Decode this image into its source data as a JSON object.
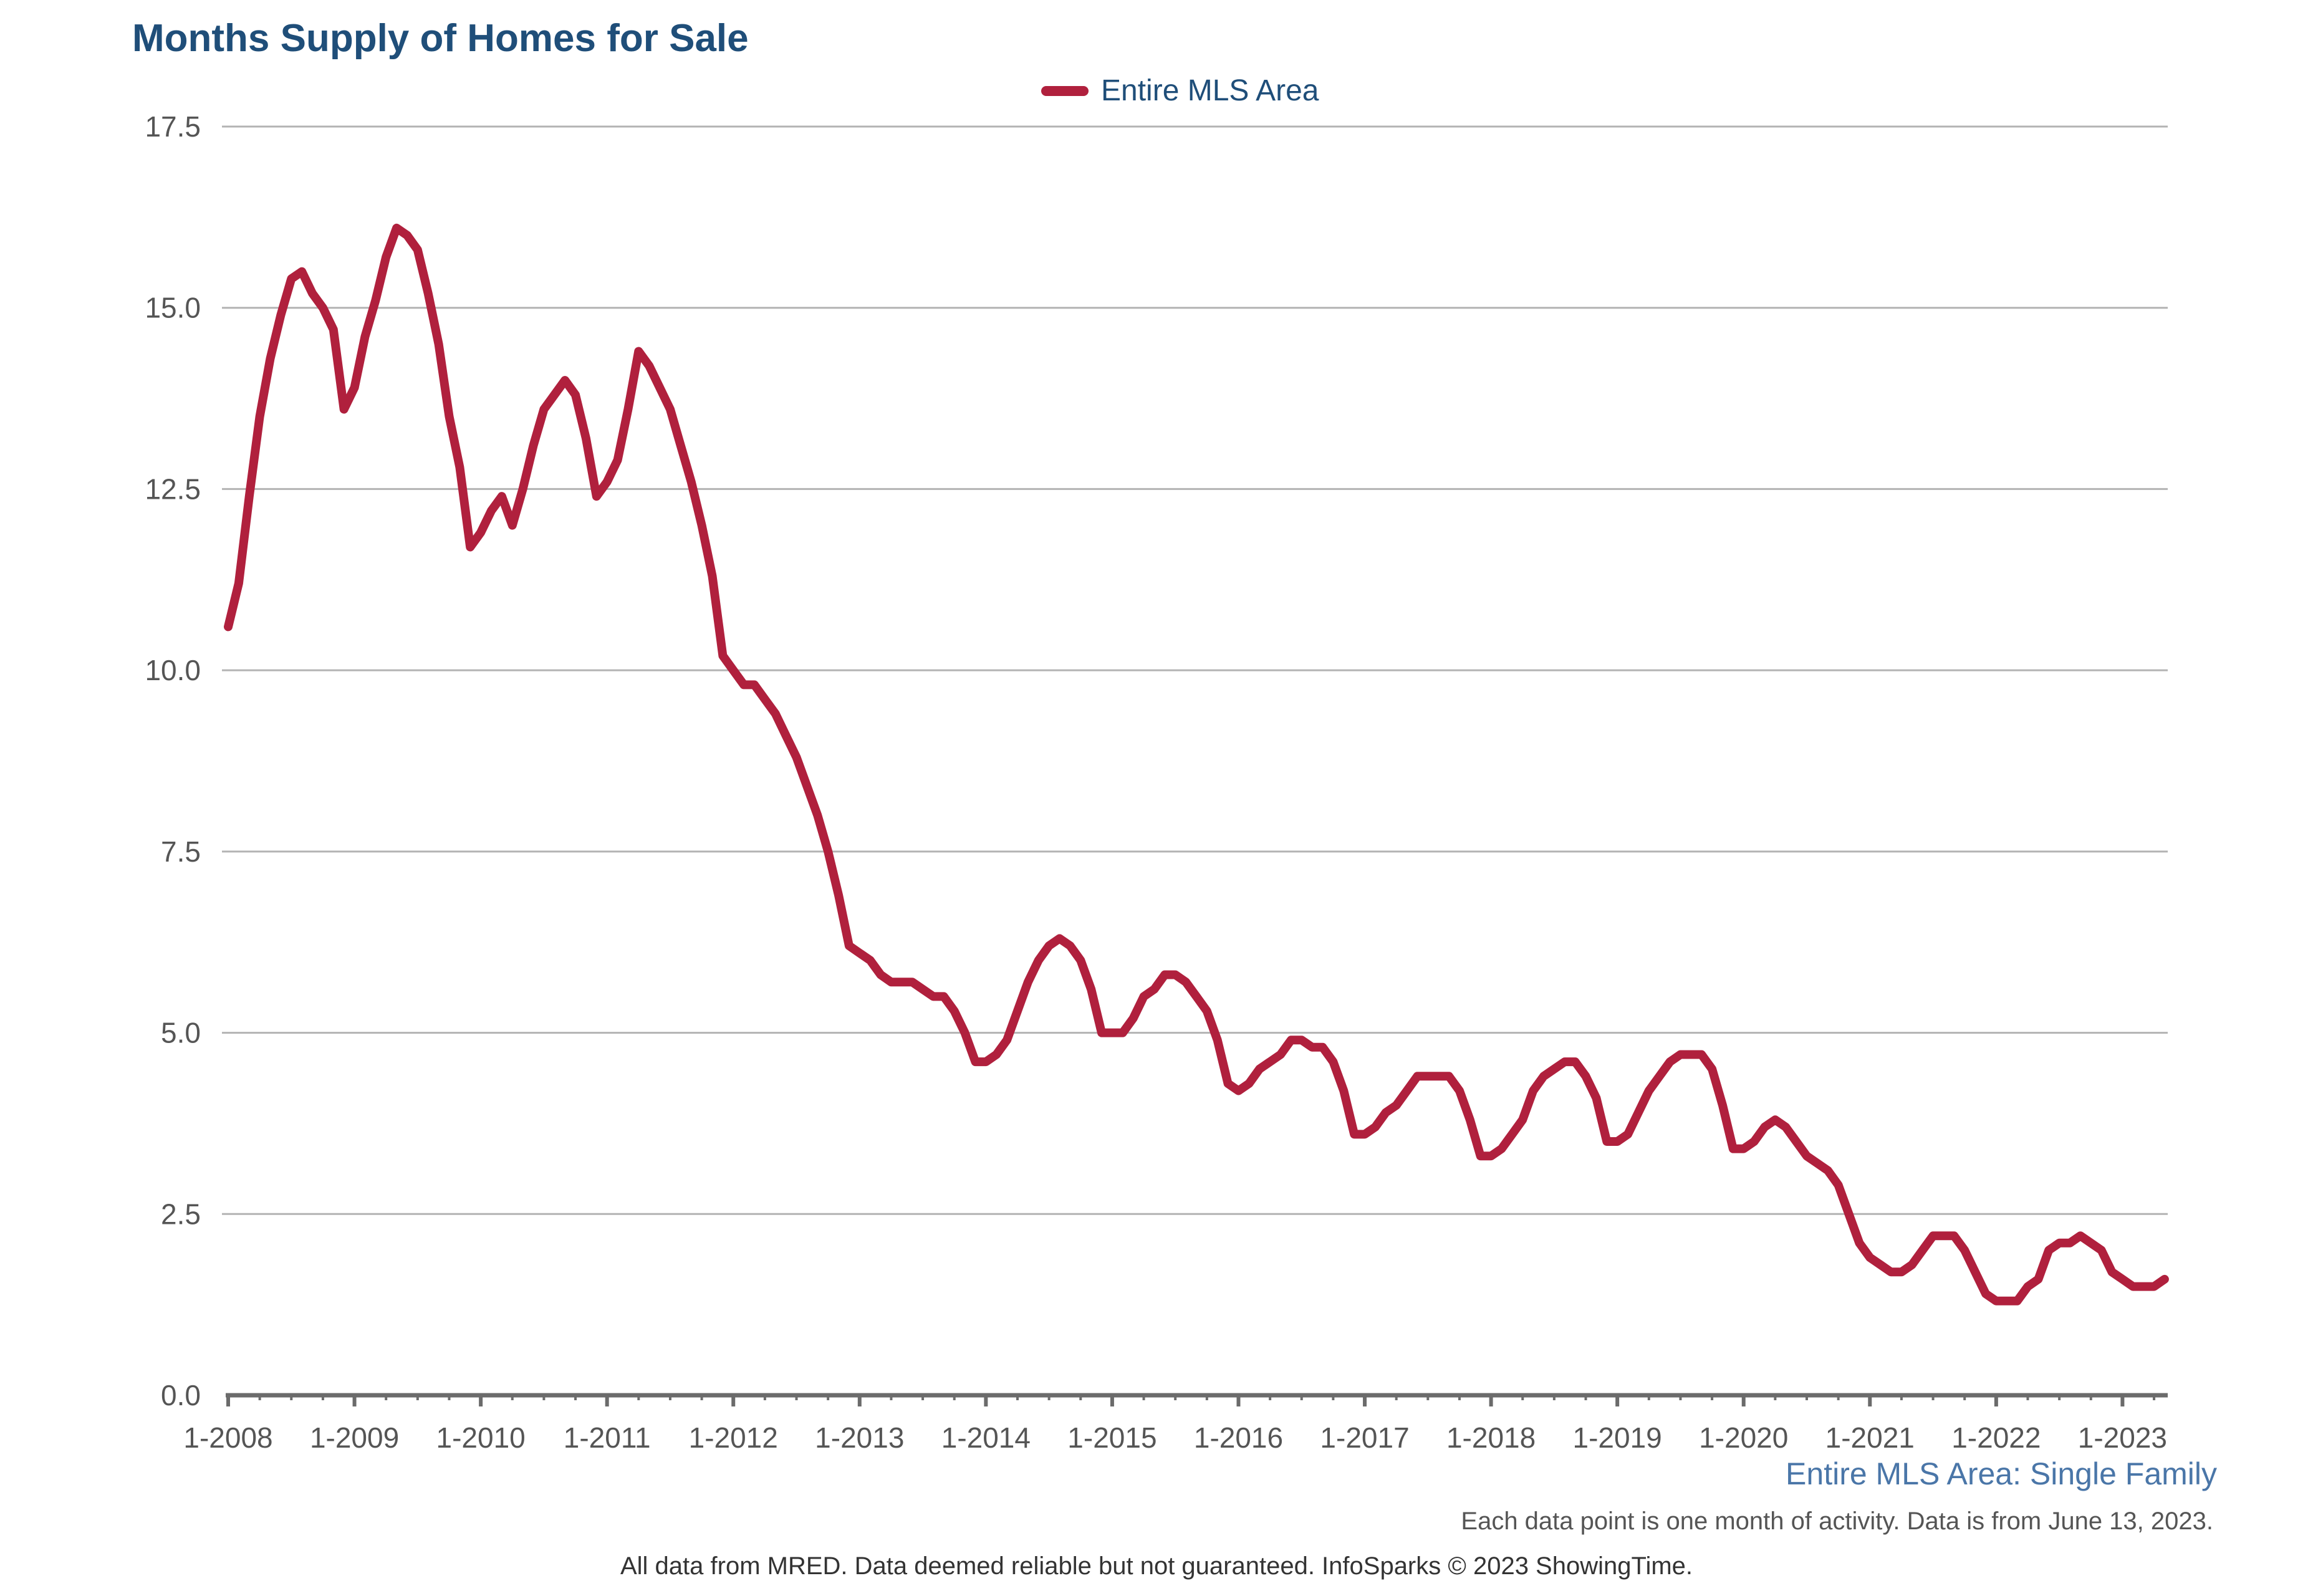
{
  "chart_data": {
    "type": "line",
    "title": "Months Supply of Homes for Sale",
    "subtitle": "Entire MLS Area: Single Family",
    "note": "Each data point is one month of activity. Data is from June 13, 2023.",
    "footer": "All data from MRED. Data deemed reliable but not guaranteed. InfoSparks © 2023 ShowingTime.",
    "legend": {
      "position": "top-center"
    },
    "grid": true,
    "y_ticks": [
      "0.0",
      "2.5",
      "5.0",
      "7.5",
      "10.0",
      "12.5",
      "15.0",
      "17.5"
    ],
    "ylim": [
      0,
      17.5
    ],
    "x_ticks": [
      "1-2008",
      "1-2009",
      "1-2010",
      "1-2011",
      "1-2012",
      "1-2013",
      "1-2014",
      "1-2015",
      "1-2016",
      "1-2017",
      "1-2018",
      "1-2019",
      "1-2020",
      "1-2021",
      "1-2022",
      "1-2023"
    ],
    "x_start": "1-2008",
    "x_end": "5-2023",
    "series": [
      {
        "name": "Entire MLS Area",
        "color": "#b0203d",
        "values": [
          10.6,
          11.2,
          12.4,
          13.5,
          14.3,
          14.9,
          15.4,
          15.5,
          15.2,
          15.0,
          14.7,
          13.6,
          13.9,
          14.6,
          15.1,
          15.7,
          16.1,
          16.0,
          15.8,
          15.2,
          14.5,
          13.5,
          12.8,
          11.7,
          11.9,
          12.2,
          12.4,
          12.0,
          12.5,
          13.1,
          13.6,
          13.8,
          14.0,
          13.8,
          13.2,
          12.4,
          12.6,
          12.9,
          13.6,
          14.4,
          14.2,
          13.9,
          13.6,
          13.1,
          12.6,
          12.0,
          11.3,
          10.2,
          10.0,
          9.8,
          9.8,
          9.6,
          9.4,
          9.1,
          8.8,
          8.4,
          8.0,
          7.5,
          6.9,
          6.2,
          6.1,
          6.0,
          5.8,
          5.7,
          5.7,
          5.7,
          5.6,
          5.5,
          5.5,
          5.3,
          5.0,
          4.6,
          4.6,
          4.7,
          4.9,
          5.3,
          5.7,
          6.0,
          6.2,
          6.3,
          6.2,
          6.0,
          5.6,
          5.0,
          5.0,
          5.0,
          5.2,
          5.5,
          5.6,
          5.8,
          5.8,
          5.7,
          5.5,
          5.3,
          4.9,
          4.3,
          4.2,
          4.3,
          4.5,
          4.6,
          4.7,
          4.9,
          4.9,
          4.8,
          4.8,
          4.6,
          4.2,
          3.6,
          3.6,
          3.7,
          3.9,
          4.0,
          4.2,
          4.4,
          4.4,
          4.4,
          4.4,
          4.2,
          3.8,
          3.3,
          3.3,
          3.4,
          3.6,
          3.8,
          4.2,
          4.4,
          4.5,
          4.6,
          4.6,
          4.4,
          4.1,
          3.5,
          3.5,
          3.6,
          3.9,
          4.2,
          4.4,
          4.6,
          4.7,
          4.7,
          4.7,
          4.5,
          4.0,
          3.4,
          3.4,
          3.5,
          3.7,
          3.8,
          3.7,
          3.5,
          3.3,
          3.2,
          3.1,
          2.9,
          2.5,
          2.1,
          1.9,
          1.8,
          1.7,
          1.7,
          1.8,
          2.0,
          2.2,
          2.2,
          2.2,
          2.0,
          1.7,
          1.4,
          1.3,
          1.3,
          1.3,
          1.5,
          1.6,
          2.0,
          2.1,
          2.1,
          2.2,
          2.1,
          2.0,
          1.7,
          1.6,
          1.5,
          1.5,
          1.5,
          1.6
        ]
      }
    ]
  }
}
